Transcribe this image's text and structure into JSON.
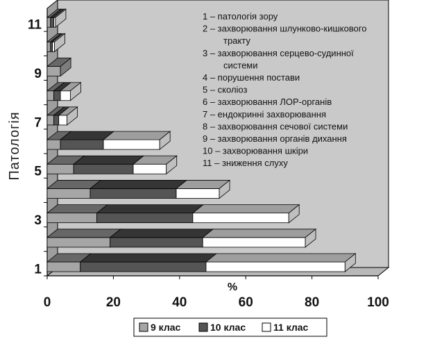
{
  "chart_data": {
    "type": "bar",
    "orientation": "horizontal",
    "stacked": true,
    "three_d": true,
    "categories": [
      "1",
      "2",
      "3",
      "4",
      "5",
      "6",
      "7",
      "8",
      "9",
      "10",
      "11"
    ],
    "y_tick_labels": [
      "1",
      "3",
      "5",
      "7",
      "9",
      "11"
    ],
    "x_ticks": [
      0,
      20,
      40,
      60,
      80,
      100
    ],
    "xlim": [
      0,
      100
    ],
    "xlabel": "%",
    "ylabel": "Патологія",
    "series": [
      {
        "name": "9 клас",
        "color": "#a6a6a6",
        "values": [
          10,
          19,
          15,
          13,
          8,
          4,
          2,
          2,
          4,
          1,
          1
        ]
      },
      {
        "name": "10 клас",
        "color": "#555555",
        "values": [
          38,
          28,
          29,
          26,
          18,
          13,
          1.5,
          2,
          0,
          0.6,
          1
        ]
      },
      {
        "name": "11 клас",
        "color": "#ffffff",
        "values": [
          42,
          31,
          29,
          13,
          10,
          17,
          2.5,
          3,
          0,
          0.6,
          0.5
        ]
      }
    ],
    "legend": {
      "position": "bottom",
      "labels": [
        "9 клас",
        "10 клас",
        "11 клас"
      ]
    },
    "annotation_lines": [
      "1 – патологія зору",
      "2 – захворювання шлунково-кишкового",
      "тракту",
      "3 – захворювання серцево-судинної",
      "системи",
      "4 – порушення постави",
      "5 – сколіоз",
      "6 – захворювання ЛОР-органів",
      "7 – ендокринні захворювання",
      "8 – захворювання сечової системи",
      "9 – захворювання органів дихання",
      "10 – захворювання шкіри",
      "11 – зниження слуху"
    ],
    "grid": false
  },
  "colors": {
    "wall": "#c9c9c9",
    "floor": "#b8b8b8",
    "outline": "#000000"
  }
}
